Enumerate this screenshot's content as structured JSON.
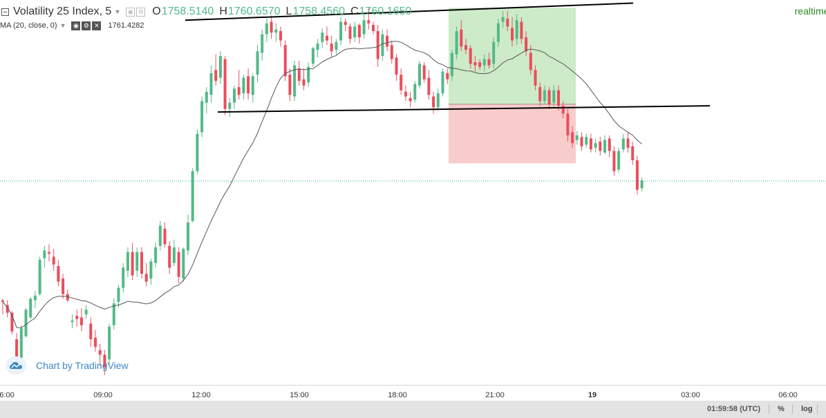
{
  "symbol": {
    "title": "Volatility 25 Index, 5",
    "open_label": "O",
    "open": "1758.5140",
    "high_label": "H",
    "high": "1760.6570",
    "low_label": "L",
    "low": "1758.4560",
    "close_label": "C",
    "close": "1760.1650",
    "realtime": "realtime fe"
  },
  "indicator": {
    "label": "MA (20, close, 0)",
    "value": "1761.4282"
  },
  "watermark": "Chart by TradingView",
  "time_axis": [
    "6:00",
    "09:00",
    "12:00",
    "15:00",
    "18:00",
    "21:00",
    "19",
    "03:00",
    "06:00"
  ],
  "status": {
    "clock": "01:59:58 (UTC)",
    "percent": "%",
    "log": "log"
  },
  "colors": {
    "up": "#53b987",
    "down": "#eb4d5c",
    "ma": "#555555",
    "profit_zone": "#cdeac9",
    "loss_zone": "#f9cccc",
    "price_line": "#26a69a"
  },
  "chart_data": {
    "type": "candlestick",
    "title": "Volatility 25 Index, 5",
    "interval": "5",
    "ylim": [
      1747.6,
      1771.0
    ],
    "current_price": 1760.165,
    "ma": {
      "name": "MA (20, close, 0)",
      "last": 1761.4282
    },
    "drawings": {
      "upper_trendline": [
        1770.5,
        1771.6
      ],
      "lower_trendline": [
        1764.6,
        1765.0
      ],
      "profit_zone": [
        1765.1,
        1771.3
      ],
      "loss_zone": [
        1761.3,
        1765.1
      ]
    },
    "candles": [
      [
        1752.5,
        1752.6,
        1751.6,
        1752.4
      ],
      [
        1752.2,
        1752.5,
        1751.4,
        1751.7
      ],
      [
        1751.7,
        1751.8,
        1750.3,
        1750.5
      ],
      [
        1750.0,
        1750.4,
        1748.1,
        1748.4
      ],
      [
        1748.6,
        1750.9,
        1748.5,
        1750.7
      ],
      [
        1750.2,
        1752.0,
        1750.1,
        1751.9
      ],
      [
        1751.4,
        1752.7,
        1751.3,
        1752.6
      ],
      [
        1752.5,
        1753.1,
        1752.0,
        1752.8
      ],
      [
        1752.9,
        1755.3,
        1752.8,
        1755.1
      ],
      [
        1755.2,
        1756.0,
        1754.6,
        1755.7
      ],
      [
        1755.6,
        1756.1,
        1755.0,
        1755.5
      ],
      [
        1755.3,
        1755.8,
        1754.4,
        1754.8
      ],
      [
        1754.7,
        1755.1,
        1753.4,
        1753.7
      ],
      [
        1753.9,
        1754.2,
        1752.6,
        1752.9
      ],
      [
        1752.9,
        1753.2,
        1752.4,
        1752.5
      ],
      [
        1751.1,
        1751.6,
        1750.7,
        1751.2
      ],
      [
        1751.5,
        1751.9,
        1750.8,
        1751.3
      ],
      [
        1751.4,
        1752.0,
        1750.5,
        1750.9
      ],
      [
        1751.6,
        1752.2,
        1751.3,
        1751.9
      ],
      [
        1751.0,
        1751.4,
        1749.5,
        1750.0
      ],
      [
        1750.1,
        1750.6,
        1749.2,
        1749.5
      ],
      [
        1749.3,
        1749.7,
        1748.3,
        1749.0
      ],
      [
        1749.0,
        1749.3,
        1747.7,
        1748.2
      ],
      [
        1748.7,
        1751.0,
        1748.4,
        1750.8
      ],
      [
        1750.9,
        1752.6,
        1750.6,
        1752.3
      ],
      [
        1752.4,
        1753.5,
        1752.0,
        1753.3
      ],
      [
        1753.3,
        1754.9,
        1753.0,
        1754.6
      ],
      [
        1754.4,
        1755.9,
        1754.0,
        1755.6
      ],
      [
        1755.6,
        1756.2,
        1753.8,
        1754.1
      ],
      [
        1754.4,
        1755.9,
        1754.0,
        1755.6
      ],
      [
        1755.6,
        1755.9,
        1753.9,
        1754.2
      ],
      [
        1754.2,
        1754.9,
        1753.4,
        1753.7
      ],
      [
        1753.9,
        1755.2,
        1753.5,
        1755.0
      ],
      [
        1754.9,
        1756.2,
        1754.6,
        1755.9
      ],
      [
        1756.0,
        1757.6,
        1755.7,
        1757.3
      ],
      [
        1757.1,
        1757.5,
        1755.9,
        1756.1
      ],
      [
        1756.0,
        1756.3,
        1754.2,
        1754.6
      ],
      [
        1754.9,
        1756.4,
        1754.7,
        1755.9
      ],
      [
        1755.6,
        1755.9,
        1753.6,
        1754.0
      ],
      [
        1753.9,
        1755.9,
        1753.7,
        1755.8
      ],
      [
        1755.7,
        1758.0,
        1755.4,
        1757.5
      ],
      [
        1757.6,
        1761.0,
        1757.5,
        1760.8
      ],
      [
        1760.8,
        1763.5,
        1760.6,
        1763.2
      ],
      [
        1763.3,
        1765.6,
        1763.0,
        1765.3
      ],
      [
        1765.2,
        1766.2,
        1764.5,
        1765.9
      ],
      [
        1765.7,
        1767.6,
        1765.2,
        1767.1
      ],
      [
        1767.3,
        1768.3,
        1766.3,
        1766.6
      ],
      [
        1766.8,
        1768.5,
        1766.4,
        1768.2
      ],
      [
        1768.0,
        1768.2,
        1764.4,
        1764.8
      ],
      [
        1764.8,
        1765.5,
        1764.3,
        1765.2
      ],
      [
        1765.2,
        1766.3,
        1764.8,
        1766.1
      ],
      [
        1766.2,
        1767.3,
        1765.4,
        1765.7
      ],
      [
        1765.8,
        1767.0,
        1765.4,
        1766.8
      ],
      [
        1766.9,
        1767.4,
        1765.4,
        1765.8
      ],
      [
        1765.7,
        1767.1,
        1765.2,
        1766.9
      ],
      [
        1767.0,
        1768.9,
        1766.5,
        1768.5
      ],
      [
        1768.4,
        1769.9,
        1767.9,
        1769.6
      ],
      [
        1769.6,
        1770.6,
        1769.1,
        1770.3
      ],
      [
        1770.4,
        1770.8,
        1769.3,
        1769.7
      ],
      [
        1769.7,
        1770.3,
        1769.1,
        1769.9
      ],
      [
        1769.8,
        1770.1,
        1768.8,
        1769.2
      ],
      [
        1768.9,
        1769.2,
        1766.6,
        1766.9
      ],
      [
        1767.0,
        1767.4,
        1765.3,
        1765.7
      ],
      [
        1765.6,
        1767.9,
        1765.3,
        1767.6
      ],
      [
        1767.4,
        1767.9,
        1766.3,
        1766.6
      ],
      [
        1766.7,
        1767.4,
        1766.0,
        1766.3
      ],
      [
        1766.5,
        1767.8,
        1766.2,
        1767.5
      ],
      [
        1767.7,
        1768.8,
        1767.5,
        1768.7
      ],
      [
        1768.6,
        1769.3,
        1768.1,
        1769.0
      ],
      [
        1769.1,
        1770.0,
        1768.7,
        1769.7
      ],
      [
        1769.5,
        1770.1,
        1768.9,
        1769.2
      ],
      [
        1769.0,
        1769.5,
        1768.1,
        1768.5
      ],
      [
        1768.6,
        1769.3,
        1768.3,
        1769.1
      ],
      [
        1769.2,
        1770.7,
        1768.9,
        1770.4
      ],
      [
        1770.4,
        1770.6,
        1769.8,
        1770.2
      ],
      [
        1770.1,
        1770.3,
        1769.0,
        1769.3
      ],
      [
        1769.4,
        1770.4,
        1769.1,
        1770.1
      ],
      [
        1770.2,
        1770.3,
        1769.0,
        1769.4
      ],
      [
        1769.6,
        1770.9,
        1769.3,
        1770.5
      ],
      [
        1770.5,
        1771.3,
        1769.9,
        1770.3
      ],
      [
        1770.2,
        1770.4,
        1769.6,
        1769.8
      ],
      [
        1769.8,
        1770.2,
        1767.5,
        1768.0
      ],
      [
        1768.2,
        1769.9,
        1767.9,
        1769.6
      ],
      [
        1769.5,
        1769.9,
        1768.5,
        1768.8
      ],
      [
        1768.9,
        1769.2,
        1767.7,
        1768.0
      ],
      [
        1768.1,
        1768.3,
        1766.6,
        1767.0
      ],
      [
        1767.0,
        1767.4,
        1765.7,
        1766.0
      ],
      [
        1765.9,
        1766.3,
        1765.3,
        1765.6
      ],
      [
        1765.5,
        1765.9,
        1764.9,
        1765.3
      ],
      [
        1765.4,
        1766.6,
        1765.2,
        1766.4
      ],
      [
        1766.3,
        1767.9,
        1766.1,
        1767.7
      ],
      [
        1767.6,
        1767.8,
        1766.5,
        1766.7
      ],
      [
        1766.8,
        1767.3,
        1765.4,
        1765.7
      ],
      [
        1765.6,
        1765.9,
        1764.5,
        1764.9
      ],
      [
        1764.9,
        1766.1,
        1764.7,
        1765.8
      ],
      [
        1765.8,
        1767.4,
        1765.6,
        1767.2
      ],
      [
        1767.1,
        1767.4,
        1766.4,
        1766.7
      ],
      [
        1766.9,
        1768.6,
        1766.6,
        1768.4
      ],
      [
        1768.3,
        1770.1,
        1768.0,
        1769.8
      ],
      [
        1769.9,
        1770.5,
        1768.5,
        1768.8
      ],
      [
        1768.9,
        1769.3,
        1768.3,
        1768.6
      ],
      [
        1768.7,
        1768.9,
        1767.4,
        1767.7
      ],
      [
        1767.8,
        1768.2,
        1767.2,
        1767.6
      ],
      [
        1767.8,
        1768.0,
        1767.3,
        1767.5
      ],
      [
        1767.6,
        1768.3,
        1767.2,
        1768.0
      ],
      [
        1768.0,
        1768.4,
        1767.4,
        1767.6
      ],
      [
        1767.7,
        1769.4,
        1767.4,
        1769.1
      ],
      [
        1769.1,
        1770.6,
        1768.8,
        1770.3
      ],
      [
        1770.4,
        1771.1,
        1770.0,
        1770.7
      ],
      [
        1770.6,
        1771.1,
        1769.8,
        1770.1
      ],
      [
        1770.0,
        1770.7,
        1768.8,
        1769.2
      ],
      [
        1769.3,
        1770.9,
        1768.9,
        1770.5
      ],
      [
        1770.4,
        1770.7,
        1769.0,
        1769.3
      ],
      [
        1769.4,
        1769.8,
        1768.2,
        1768.5
      ],
      [
        1768.4,
        1768.9,
        1767.0,
        1767.3
      ],
      [
        1767.3,
        1767.6,
        1766.0,
        1766.3
      ],
      [
        1766.2,
        1766.5,
        1765.0,
        1765.3
      ],
      [
        1765.3,
        1766.3,
        1765.1,
        1766.0
      ],
      [
        1766.0,
        1766.2,
        1764.8,
        1765.1
      ],
      [
        1765.2,
        1766.3,
        1764.9,
        1766.0
      ],
      [
        1766.0,
        1766.3,
        1764.7,
        1765.0
      ],
      [
        1765.0,
        1765.3,
        1764.2,
        1764.5
      ],
      [
        1764.5,
        1764.8,
        1762.7,
        1763.1
      ],
      [
        1763.3,
        1763.7,
        1762.3,
        1762.6
      ],
      [
        1762.8,
        1763.4,
        1762.5,
        1763.1
      ],
      [
        1763.0,
        1763.3,
        1762.1,
        1762.4
      ],
      [
        1762.5,
        1763.2,
        1762.3,
        1763.0
      ],
      [
        1762.9,
        1763.2,
        1762.0,
        1762.2
      ],
      [
        1762.3,
        1762.9,
        1762.0,
        1762.6
      ],
      [
        1762.7,
        1763.0,
        1761.8,
        1762.1
      ],
      [
        1762.0,
        1763.1,
        1761.9,
        1762.8
      ],
      [
        1762.9,
        1763.1,
        1761.7,
        1762.1
      ],
      [
        1762.1,
        1762.4,
        1760.5,
        1760.8
      ],
      [
        1760.9,
        1762.3,
        1760.7,
        1762.1
      ],
      [
        1762.2,
        1763.2,
        1762.0,
        1762.9
      ],
      [
        1762.9,
        1763.3,
        1762.0,
        1762.3
      ],
      [
        1762.4,
        1762.7,
        1761.2,
        1761.5
      ],
      [
        1761.5,
        1761.8,
        1759.3,
        1759.6
      ],
      [
        1759.7,
        1760.4,
        1759.5,
        1760.2
      ]
    ]
  }
}
